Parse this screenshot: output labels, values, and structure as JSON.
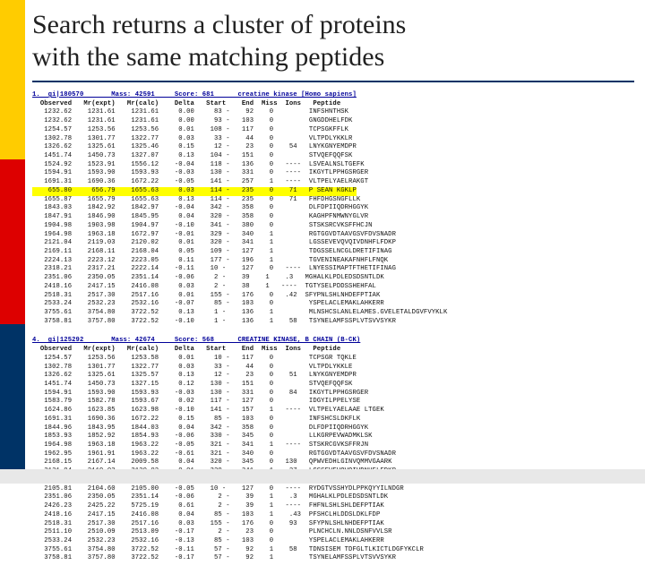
{
  "title_line1": "Search returns a cluster of proteins",
  "title_line2": "with the same matching peptides",
  "block1": {
    "header": "1.  gi|180570       Mass: 42591     Score: 681      creatine kinase [Homo sapiens]",
    "colhead": "  Observed   Mr(expt)   Mr(calc)    Delta   Start    End  Miss  Ions   Peptide",
    "rows": [
      "   1232.62    1231.61    1231.61     0.00     83 -    92    0         INFSHNTHSK",
      "   1232.62    1231.61    1231.61     0.00     93 -   103    0         GNGDDHELFDK",
      "   1254.57    1253.56    1253.56     0.01    108 -   117    0         TCPSGKFFLK",
      "   1302.78    1301.77    1322.77     0.03     33 -    44    0         VLTPDLYKKLR",
      "   1326.62    1325.61    1325.46     0.15     12 -    23    0    54   LNYKGNYEMDPR",
      "   1451.74    1450.73    1327.07     0.13    104 -   151    0         STVQEFQQFSK",
      "   1524.92    1523.91    1556.12    -0.04    118 -   136    0   ----  LSVEALNSLTGEFK",
      "   1594.91    1593.90    1593.93    -0.03    130 -   331    0   ----  IKGYTLPPHGSRGER",
      "   1691.31    1690.36    1672.22    -0.05    141 -   257    1   ----  VLTPELYAELRAKGT",
      "   1655.87    1655.79    1655.63     0.13    114 -   235    0    71   FHFDHGSNGFLLK",
      "   1843.03    1842.92    1842.97    -0.04    342 -   358    0         DLFDPIIQDRHGGYK",
      "   1847.91    1846.90    1845.95     0.04    320 -   358    0         KAGHPFNMWNYGLVR",
      "   1904.98    1903.98    1904.97    -0.10    341 -   380    0         STSKSRCVKSFFHCJN",
      "   1964.98    1963.18    1672.97    -0.01    329 -   340    1         RGTGGVDTAAVGSVFDVSNADR",
      "   2121.04    2119.03    2120.02     0.01    320 -   341    1         LGSSEVEVQVQIVDNHFLFDKP",
      "   2169.11    2168.11    2168.04     0.05    109 -   127    1         TDGSSELNCGLDRETIFINAG",
      "   2224.13    2223.12    2223.05     0.11    177 -   196    1         TGVENINEAKAFNHFLFNQK",
      "   2318.21    2317.21    2222.14    -0.11    10 -    127    0   ----  LNYESSIMAPTFTHETIFINAG",
      "   2351.06    2350.05    2351.14    -0.06     2 -    39    1    .3   MGHALKLPDLEDSDSNTLDK",
      "   2418.16    2417.15    2416.08     0.03     2 -    38    1   ----  TGTYSELPDDSSHEHFAL",
      "   2518.31    2517.30    2517.16     0.01    155 -   176    0   .42  SFYPNLSHLNHDEFPTIAK",
      "   2533.24    2532.23    2532.16    -0.07     85 -   103    0         YSPELACLEMAKLAHKERR",
      "   3755.61    3754.80    3722.52     0.13     1 -    136    1         MLNSHCSLANLELAMES.GVELETALDGVFVYKLK",
      "   3758.81    3757.80    3722.52    -0.10     1 -    136    1    58   TSYNELAMFSSPLVTSVVSYKR"
    ],
    "hl_row": "    655.80     656.79    1655.63     0.03    114 -   235    0    71   P SEAN KGKLP"
  },
  "block2": {
    "header": "4.  gi|125292       Mass: 42674     Score: 568      CREATINE KINASE, B CHAIN (B-CK)",
    "colhead": "  Observed   Mr(expt)   Mr(calc)    Delta   Start    End  Miss  Ions   Peptide",
    "rows": [
      "   1254.57    1253.56    1253.58     0.01     10 -   117    0         TCPSGR TQKLE",
      "   1302.78    1301.77    1322.77     0.03     33 -    44    0         VLTPDLYKKLE",
      "   1326.62    1325.61    1325.57     0.13     12 -    23    0    51   LNYKGNYEMDPR",
      "   1451.74    1450.73    1327.15     0.12    130 -   151    0         STVQEFQQFSK",
      "   1594.91    1593.90    1593.93    -0.03    130 -   331    0    84   IKGYTLPPHGSRGER",
      "   1583.79    1582.78    1593.67     0.02    117 -   127    0         IDGYILPPELYSE",
      "   1624.86    1623.85    1623.98    -0.10    141 -   157    1   ----  VLTPELYAELAAE LTGEK",
      "   1691.31    1690.36    1672.22     0.15     85 -   103    0         INFSHCSLDKFLK",
      "   1844.96    1843.95    1844.03     0.04    342 -   358    0         DLFDPIIQDRHGGYK",
      "   1853.93    1852.92    1854.93    -0.06    330 -   345    0         LLKGRPEVWADMKLSK",
      "   1964.98    1963.18    1963.22    -0.05    321 -   341    1   ----  STSKRCGVKSFFRJN",
      "   1962.95    1961.91    1963.22    -0.61    321 -   340    0         RGTGGVDTAAVGSVFDVSNADR",
      "   2168.15    2167.14    2009.58     0.04    320 -   345    0   130   QPWVEDHLGINVQMMVGAARK",
      "   2121.04    2119.03    2120.02     0.01    320 -   341    1   .27   LGSSEVEVQVQIVDNHFLFDKP",
      "   2224.13    2223.12    2223.05     0.11    177 -   196    0         TGVENINEAKAFNHFLFNQK",
      "   2105.81    2104.60    2105.00    -0.05    10 -    127    0   ----  RYDGTVSSHYDLPPKQYYILNDGR",
      "   2351.06    2350.05    2351.14    -0.06      2 -    39    1    .3   MGHALKLPDLEDSDSNTLDK",
      "   2426.23    2425.22    5725.19     0.61      2 -    39    1   ----  FHFNLSHLSHLDEFPTIAK",
      "   2418.16    2417.15    2416.08     0.04     85 -   103    1    .43  PFSHCLHLDDSLDKLFDP",
      "   2518.31    2517.30    2517.16     0.03    155 -   176    0    93   SFYPNLSHLNHDEFPTIAK",
      "   2511.10    2510.09    2513.09    -0.17      2 -    23    0         PLNCHCLN.NNLDSNFVVLSR",
      "   2533.24    2532.23    2532.16    -0.13     85 -   103    0         YSPELACLEMAKLAHKERR",
      "   3755.61    3754.80    3722.52    -0.11     57 -    92    1    58   TDNSISEM TDFGLTLKICTLDGFYKCLR",
      "   3758.81    3757.80    3722.52    -0.17     57 -    92    1         TSYNELAMFSSPLVTSVVSYKR"
    ]
  }
}
